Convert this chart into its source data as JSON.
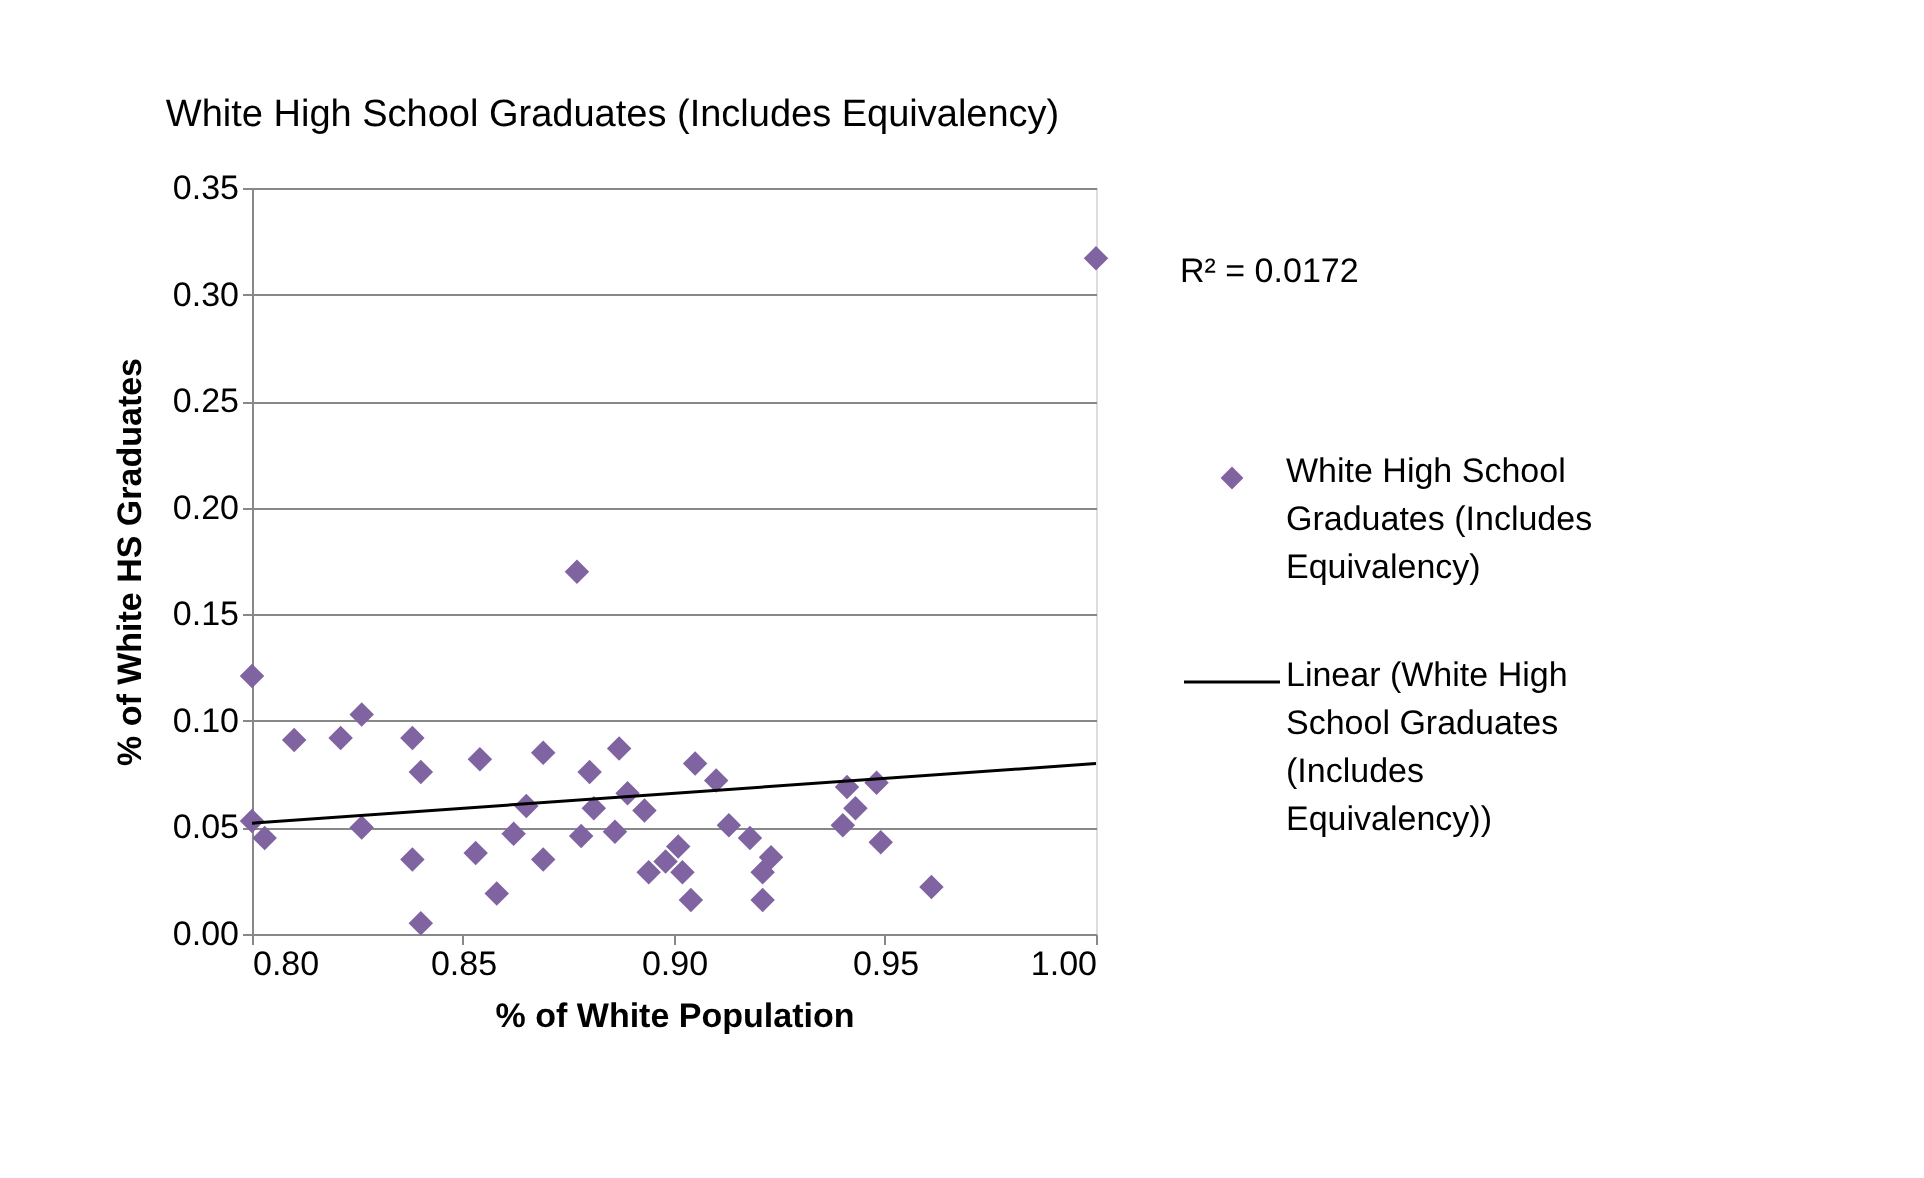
{
  "chart_data": {
    "type": "scatter",
    "title": "White High School Graduates (Includes Equivalency)",
    "xlabel": "% of White Population",
    "ylabel": "% of White HS Graduates",
    "xlim": [
      0.8,
      1.0
    ],
    "xticks": [
      {
        "value": 0.8,
        "label": "0.80"
      },
      {
        "value": 0.85,
        "label": "0.85"
      },
      {
        "value": 0.9,
        "label": "0.90"
      },
      {
        "value": 0.95,
        "label": "0.95"
      },
      {
        "value": 1.0,
        "label": "1.00"
      }
    ],
    "ylim": [
      0,
      0.35
    ],
    "yticks": [
      {
        "value": 0,
        "label": "0.00"
      },
      {
        "value": 0.05,
        "label": "0.05"
      },
      {
        "value": 0.1,
        "label": "0.10"
      },
      {
        "value": 0.15,
        "label": "0.15"
      },
      {
        "value": 0.2,
        "label": "0.20"
      },
      {
        "value": 0.25,
        "label": "0.25"
      },
      {
        "value": 0.3,
        "label": "0.30"
      },
      {
        "value": 0.35,
        "label": "0.35"
      }
    ],
    "grid": "y",
    "legend": "right",
    "annotations": [
      "R² = 0.0172"
    ],
    "series": [
      {
        "name": "White High School Graduates (Includes Equivalency)",
        "marker": "diamond",
        "color": "#8064a2",
        "x": [
          1.0,
          0.8,
          0.81,
          0.821,
          0.826,
          0.838,
          0.84,
          0.854,
          0.869,
          0.877,
          0.88,
          0.887,
          0.8,
          0.803,
          0.826,
          0.838,
          0.84,
          0.853,
          0.858,
          0.862,
          0.865,
          0.869,
          0.878,
          0.881,
          0.886,
          0.889,
          0.893,
          0.894,
          0.898,
          0.901,
          0.902,
          0.904,
          0.905,
          0.91,
          0.913,
          0.918,
          0.921,
          0.921,
          0.923,
          0.94,
          0.941,
          0.943,
          0.948,
          0.949,
          0.961
        ],
        "values": [
          0.317,
          0.121,
          0.091,
          0.092,
          0.103,
          0.092,
          0.076,
          0.082,
          0.085,
          0.17,
          0.076,
          0.087,
          0.053,
          0.045,
          0.05,
          0.035,
          0.005,
          0.038,
          0.019,
          0.047,
          0.06,
          0.035,
          0.046,
          0.059,
          0.048,
          0.066,
          0.058,
          0.029,
          0.034,
          0.041,
          0.029,
          0.016,
          0.08,
          0.072,
          0.051,
          0.045,
          0.029,
          0.016,
          0.036,
          0.051,
          0.069,
          0.059,
          0.071,
          0.043,
          0.022
        ]
      },
      {
        "name": "Linear (White High School Graduates (Includes Equivalency))",
        "type": "line",
        "marker": "none",
        "line_style": "solid",
        "color": "#000000",
        "x": [
          0.8,
          1.0
        ],
        "values": [
          0.052,
          0.08
        ]
      }
    ]
  }
}
